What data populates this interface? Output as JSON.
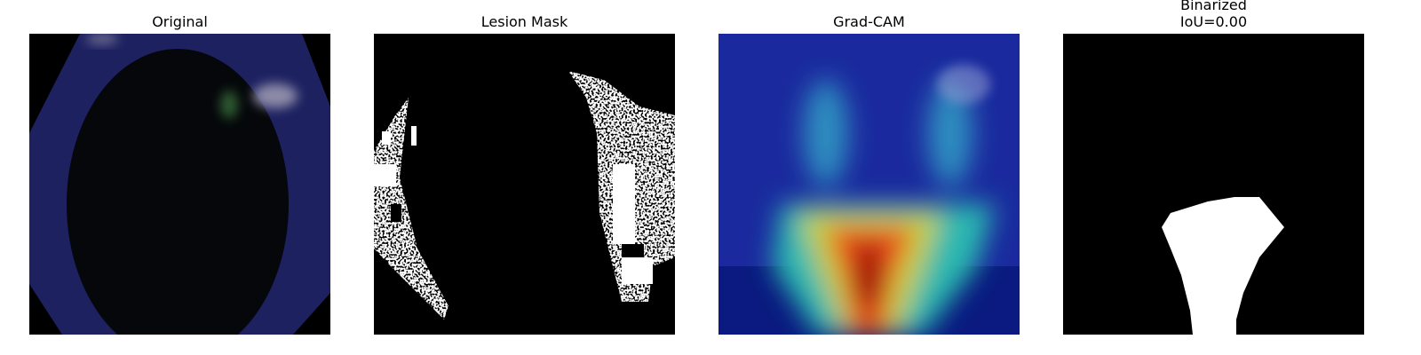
{
  "panels": [
    {
      "title_lines": [
        "Original"
      ]
    },
    {
      "title_lines": [
        "Lesion Mask"
      ]
    },
    {
      "title_lines": [
        "Grad-CAM"
      ]
    },
    {
      "title_lines": [
        "Binarized",
        "IoU=0.00"
      ]
    }
  ]
}
